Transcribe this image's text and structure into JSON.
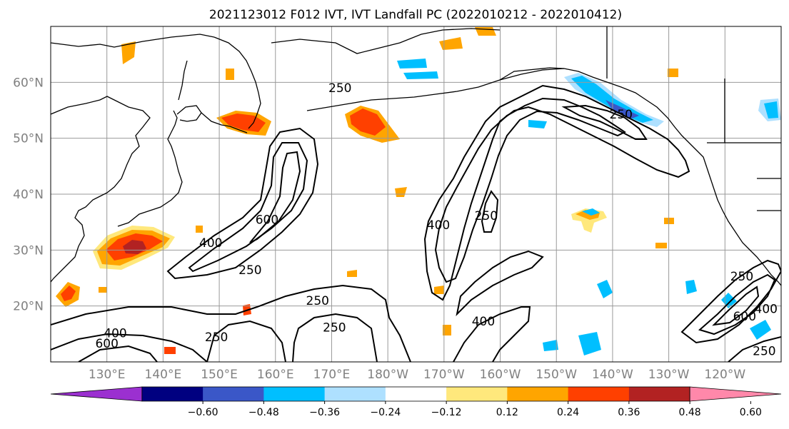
{
  "title": "2021123012 F012 IVT, IVT Landfall PC (2022010212 - 2022010412)",
  "map": {
    "lon_range": [
      120,
      250
    ],
    "lat_range": [
      10,
      70
    ],
    "lat_labels": [
      {
        "lat": 20,
        "label": "20°N"
      },
      {
        "lat": 30,
        "label": "30°N"
      },
      {
        "lat": 40,
        "label": "40°N"
      },
      {
        "lat": 50,
        "label": "50°N"
      },
      {
        "lat": 60,
        "label": "60°N"
      }
    ],
    "lon_labels": [
      {
        "lon": 130,
        "label": "130°E"
      },
      {
        "lon": 140,
        "label": "140°E"
      },
      {
        "lon": 150,
        "label": "150°E"
      },
      {
        "lon": 160,
        "label": "160°E"
      },
      {
        "lon": 170,
        "label": "170°E"
      },
      {
        "lon": 180,
        "label": "180°W"
      },
      {
        "lon": 190,
        "label": "170°W"
      },
      {
        "lon": 200,
        "label": "160°W"
      },
      {
        "lon": 210,
        "label": "150°W"
      },
      {
        "lon": 220,
        "label": "140°W"
      },
      {
        "lon": 230,
        "label": "130°W"
      },
      {
        "lon": 240,
        "label": "120°W"
      }
    ],
    "contour_labels": [
      {
        "text": "400",
        "lon": 148.5,
        "lat": 31.3
      },
      {
        "text": "600",
        "lon": 158.5,
        "lat": 35.5
      },
      {
        "text": "250",
        "lon": 155.5,
        "lat": 26.5
      },
      {
        "text": "250",
        "lon": 171.5,
        "lat": 59.0
      },
      {
        "text": "250",
        "lon": 167.5,
        "lat": 21.0
      },
      {
        "text": "250",
        "lon": 170.5,
        "lat": 16.2
      },
      {
        "text": "250",
        "lon": 149.5,
        "lat": 14.5
      },
      {
        "text": "400",
        "lon": 131.5,
        "lat": 15.2
      },
      {
        "text": "600",
        "lon": 130.0,
        "lat": 13.3
      },
      {
        "text": "400",
        "lon": 189.0,
        "lat": 34.5
      },
      {
        "text": "250",
        "lon": 197.5,
        "lat": 36.2
      },
      {
        "text": "400",
        "lon": 197.0,
        "lat": 17.3
      },
      {
        "text": "250",
        "lon": 221.5,
        "lat": 54.3
      },
      {
        "text": "250",
        "lon": 243.0,
        "lat": 25.3
      },
      {
        "text": "600",
        "lon": 243.5,
        "lat": 18.2
      },
      {
        "text": "400",
        "lon": 247.3,
        "lat": 19.5
      },
      {
        "text": "250",
        "lon": 247.0,
        "lat": 12.0
      }
    ],
    "contour_lines": {
      "levels": [
        250,
        400,
        600
      ],
      "color": "#000000"
    }
  },
  "colorbar": {
    "ticks": [
      "−0.60",
      "−0.48",
      "−0.36",
      "−0.24",
      "−0.12",
      "0.12",
      "0.24",
      "0.36",
      "0.48",
      "0.60"
    ],
    "colors": [
      "#9b30d0",
      "#000080",
      "#3a57c8",
      "#00bfff",
      "#aee0ff",
      "#ffffff",
      "#ffe87c",
      "#ffa500",
      "#ff4000",
      "#b22222",
      "#ff88aa"
    ]
  },
  "style": {
    "land_line": "#000000",
    "grid_line": "#999999",
    "label_gray": "#808080"
  }
}
